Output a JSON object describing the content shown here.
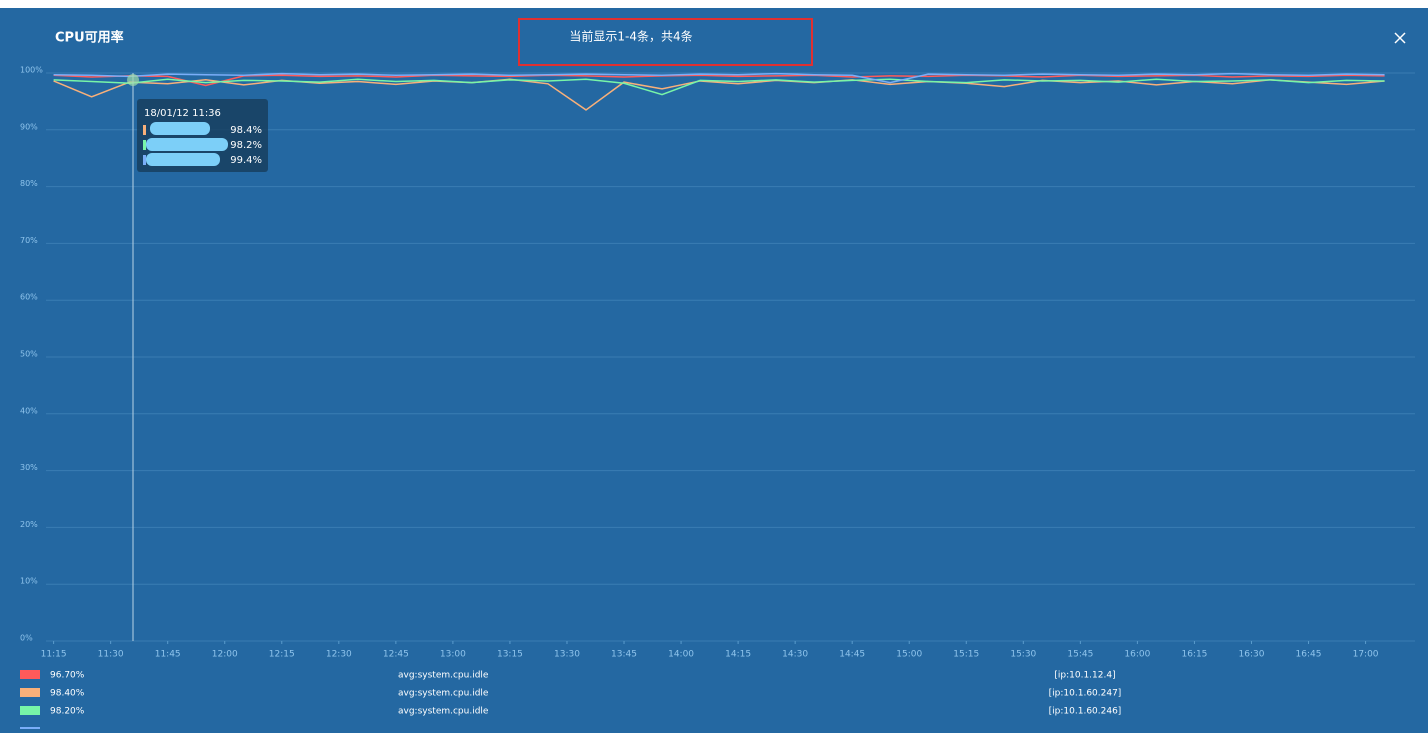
{
  "header": {
    "title": "CPU可用率",
    "notice": "当前显示1-4条，共4条"
  },
  "chart_data": {
    "type": "line",
    "x": [
      "11:15",
      "11:25",
      "11:35",
      "11:45",
      "11:55",
      "12:05",
      "12:15",
      "12:25",
      "12:35",
      "12:45",
      "12:55",
      "13:05",
      "13:15",
      "13:25",
      "13:35",
      "13:45",
      "13:55",
      "14:05",
      "14:15",
      "14:25",
      "14:35",
      "14:45",
      "14:55",
      "15:05",
      "15:15",
      "15:25",
      "15:35",
      "15:45",
      "15:55",
      "16:05",
      "16:15",
      "16:25",
      "16:35",
      "16:45",
      "16:55",
      "17:05"
    ],
    "series": [
      {
        "name": "[ip:10.1.12.4]",
        "color": "#ff5a5a",
        "values": [
          99.6,
          99.3,
          99.5,
          99.4,
          97.8,
          99.5,
          99.6,
          99.4,
          99.5,
          99.3,
          99.6,
          99.5,
          99.4,
          99.6,
          99.5,
          99.3,
          99.5,
          99.6,
          99.4,
          99.5,
          99.6,
          99.3,
          99.5,
          99.4,
          99.6,
          99.5,
          99.3,
          99.6,
          99.4,
          99.5,
          99.6,
          99.3,
          99.5,
          99.4,
          99.6,
          99.5
        ]
      },
      {
        "name": "[ip:10.1.60.247]",
        "color": "#f8b07a",
        "values": [
          98.6,
          95.8,
          98.4,
          98.1,
          98.8,
          97.9,
          98.7,
          98.2,
          98.5,
          98.0,
          98.6,
          98.3,
          98.9,
          98.1,
          93.5,
          98.4,
          97.2,
          98.6,
          98.1,
          98.7,
          98.3,
          98.8,
          98.0,
          98.5,
          98.2,
          97.6,
          98.7,
          98.3,
          98.6,
          97.9,
          98.5,
          98.1,
          98.8,
          98.4,
          98.0,
          98.6
        ]
      },
      {
        "name": "[ip:10.1.60.246]",
        "color": "#78f5a8",
        "values": [
          98.8,
          98.5,
          98.2,
          98.9,
          98.3,
          98.7,
          98.6,
          98.4,
          98.9,
          98.5,
          98.7,
          98.3,
          98.8,
          98.6,
          98.9,
          98.2,
          96.2,
          98.7,
          98.5,
          98.8,
          98.4,
          98.7,
          98.9,
          98.5,
          98.3,
          98.8,
          98.6,
          98.7,
          98.4,
          98.9,
          98.5,
          98.6,
          98.8,
          98.3,
          98.7,
          98.6
        ]
      },
      {
        "color": "#7aaef8",
        "values": [
          99.7,
          99.6,
          99.4,
          99.8,
          99.7,
          99.6,
          99.9,
          99.7,
          99.8,
          99.6,
          99.7,
          99.8,
          99.6,
          99.7,
          99.8,
          99.7,
          99.6,
          99.8,
          99.7,
          99.9,
          99.7,
          99.6,
          98.3,
          99.8,
          99.7,
          99.6,
          99.8,
          99.7,
          99.6,
          99.8,
          99.7,
          99.9,
          99.7,
          99.6,
          99.8,
          99.7
        ]
      }
    ],
    "xlim": [
      "11:13",
      "17:13"
    ],
    "xticks": [
      "11:15",
      "11:30",
      "11:45",
      "12:00",
      "12:15",
      "12:30",
      "12:45",
      "13:00",
      "13:15",
      "13:30",
      "13:45",
      "14:00",
      "14:15",
      "14:30",
      "14:45",
      "15:00",
      "15:15",
      "15:30",
      "15:45",
      "16:00",
      "16:15",
      "16:30",
      "16:45",
      "17:00"
    ],
    "ylim": [
      0,
      100
    ],
    "yticks": [
      {
        "value": 0,
        "label": "0%"
      },
      {
        "value": 10,
        "label": "10%"
      },
      {
        "value": 20,
        "label": "20%"
      },
      {
        "value": 30,
        "label": "30%"
      },
      {
        "value": 40,
        "label": "40%"
      },
      {
        "value": 50,
        "label": "50%"
      },
      {
        "value": 60,
        "label": "60%"
      },
      {
        "value": 70,
        "label": "70%"
      },
      {
        "value": 80,
        "label": "80%"
      },
      {
        "value": 90,
        "label": "90%"
      },
      {
        "value": 100,
        "label": "100%"
      }
    ],
    "grid": true
  },
  "tooltip": {
    "time": "18/01/12 11:36",
    "values": [
      "98.4%",
      "98.2%",
      "99.4%"
    ]
  },
  "legend": [
    {
      "value": "96.70%",
      "metric": "avg:system.cpu.idle"
    },
    {
      "value": "98.40%",
      "metric": "avg:system.cpu.idle"
    },
    {
      "value": "98.20%",
      "metric": "avg:system.cpu.idle"
    }
  ]
}
